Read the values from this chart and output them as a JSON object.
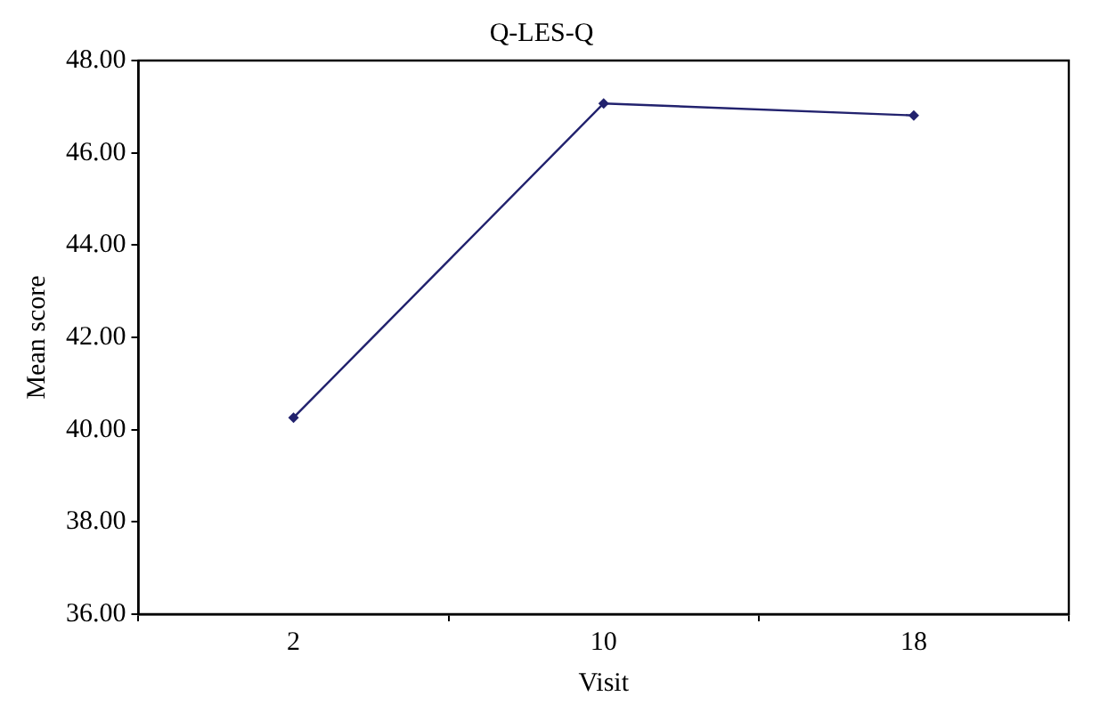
{
  "chart_data": {
    "type": "line",
    "title": "Q-LES-Q",
    "xlabel": "Visit",
    "ylabel": "Mean score",
    "categories": [
      "2",
      "10",
      "18"
    ],
    "series": [
      {
        "color": "#22226e",
        "values": [
          40.26,
          47.07,
          46.81
        ]
      }
    ],
    "ylim": [
      36,
      48
    ],
    "yticks": [
      {
        "value": 36,
        "label": "36.00"
      },
      {
        "value": 38,
        "label": "38.00"
      },
      {
        "value": 40,
        "label": "40.00"
      },
      {
        "value": 42,
        "label": "42.00"
      },
      {
        "value": 44,
        "label": "44.00"
      },
      {
        "value": 46,
        "label": "46.00"
      },
      {
        "value": 48,
        "label": "48.00"
      }
    ],
    "grid": false,
    "legend": false,
    "marker": "diamond",
    "line_style": "solid"
  }
}
